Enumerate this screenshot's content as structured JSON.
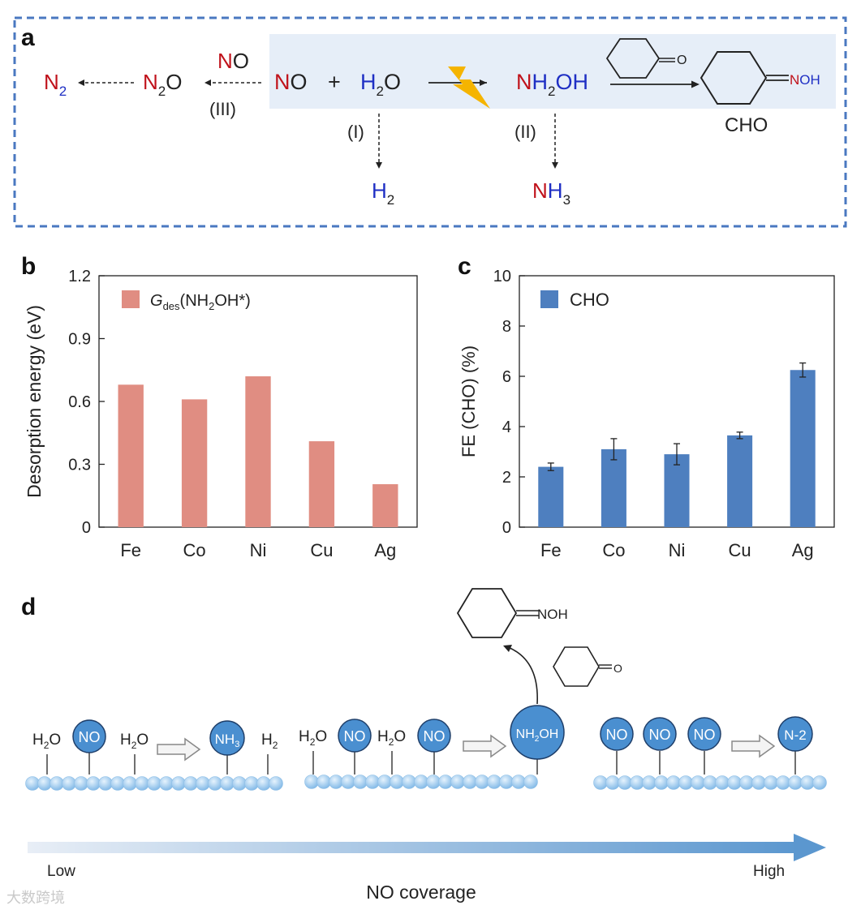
{
  "panel_a": {
    "label": "a",
    "n2": {
      "el": "N",
      "sub": "2"
    },
    "n2o": {
      "el1": "N",
      "sub": "2",
      "el2": "O"
    },
    "no_top": {
      "n": "N",
      "o": "O"
    },
    "step3": "(III)",
    "no_reactant": {
      "n": "N",
      "o": "O"
    },
    "plus": "+",
    "h2o": {
      "h": "H",
      "sub": "2",
      "o": "O"
    },
    "nh2oh": {
      "n": "N",
      "h": "H",
      "sub": "2",
      "oh": "OH"
    },
    "ketone_o": "O",
    "oxime_n": "N",
    "oxime_oh": "OH",
    "product": "CHO",
    "step1": "(I)",
    "step2": "(II)",
    "h2": {
      "h": "H",
      "sub": "2"
    },
    "nh3": {
      "n": "N",
      "h": "H",
      "sub": "3"
    }
  },
  "chart_b": {
    "label": "b",
    "type": "bar",
    "categories": [
      "Fe",
      "Co",
      "Ni",
      "Cu",
      "Ag"
    ],
    "values": [
      0.68,
      0.61,
      0.72,
      0.41,
      0.205
    ],
    "ylabel": "Desorption energy (eV)",
    "ylim": [
      0,
      1.2
    ],
    "yticks": [
      "0",
      "0.3",
      "0.6",
      "0.9",
      "1.2"
    ],
    "legend": {
      "g": "G",
      "des": "des",
      "rest": "(NH",
      "sub2": "2",
      "end": "OH*)"
    },
    "color": "#e08d82"
  },
  "chart_c": {
    "label": "c",
    "type": "bar",
    "categories": [
      "Fe",
      "Co",
      "Ni",
      "Cu",
      "Ag"
    ],
    "values": [
      2.4,
      3.1,
      2.9,
      3.65,
      6.25
    ],
    "errors": [
      0.15,
      0.42,
      0.42,
      0.13,
      0.28
    ],
    "ylabel": "FE (CHO) (%)",
    "ylim": [
      0,
      10
    ],
    "yticks": [
      "0",
      "2",
      "4",
      "6",
      "8",
      "10"
    ],
    "legend": "CHO",
    "color": "#4e7fbf"
  },
  "panel_d": {
    "label": "d",
    "oxime_label": "=NOH",
    "ketone_o": "O",
    "group1": {
      "h2o_a": "H",
      "sub_a": "2",
      "o_a": "O",
      "no": "NO",
      "h2o_b": "H",
      "sub_b": "2",
      "o_b": "O",
      "nh3": "NH",
      "sub3": "3",
      "h2": "H",
      "sub2": "2"
    },
    "group2": {
      "h2o_a": "H",
      "sub_a": "2",
      "o_a": "O",
      "no_a": "NO",
      "h2o_b": "H",
      "sub_b": "2",
      "o_b": "O",
      "no_b": "NO",
      "nh": "NH",
      "sub2": "2",
      "oh": "OH"
    },
    "group3": {
      "no_a": "NO",
      "no_b": "NO",
      "no_c": "NO",
      "n2": "N-2"
    },
    "low": "Low",
    "high": "High",
    "coverage": "NO coverage"
  },
  "colors": {
    "red": "#c0121b",
    "blue": "#1f2fc4",
    "frame": "#4a78c0",
    "highlight": "#e6eef8",
    "bolt": "#f5b400",
    "circle": "#4a8fd0",
    "bead": "#a8d0f0"
  },
  "watermark": "大数跨境"
}
